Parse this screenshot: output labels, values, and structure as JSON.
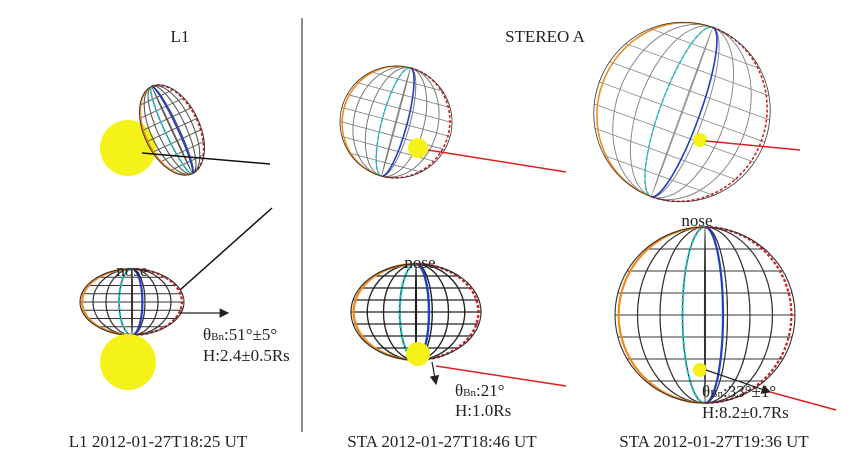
{
  "titles": {
    "left": "L1",
    "right": "STEREO A"
  },
  "panels": [
    {
      "nose": "nose",
      "angle": {
        "symbol": "θ",
        "sub": "Bn",
        "text": ":51°±5°"
      },
      "height": "H:2.4±0.5Rs",
      "caption": "L1 2012-01-27T18:25 UT"
    },
    {
      "nose": "nose",
      "angle": {
        "symbol": "θ",
        "sub": "Bn",
        "text": ":21°"
      },
      "height": "H:1.0Rs",
      "caption": "STA 2012-01-27T18:46 UT"
    },
    {
      "nose": "nose",
      "angle": {
        "symbol": "θ",
        "sub": "Bn",
        "text": ":33°±1°"
      },
      "height": "H:8.2±0.7Rs",
      "caption": "STA 2012-01-27T19:36 UT"
    }
  ]
}
